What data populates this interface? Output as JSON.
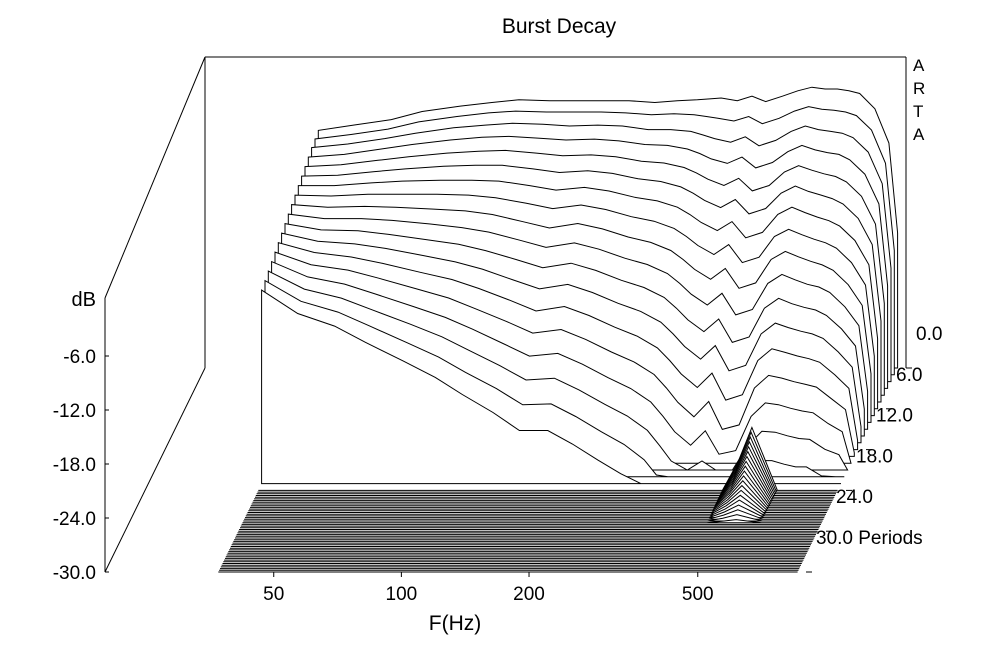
{
  "chart_data": {
    "type": "waterfall",
    "title": "Burst Decay",
    "watermark": "ARTA",
    "xlabel": "F(Hz)",
    "ylabel": "dB",
    "zlabel": "Periods",
    "x_scale": "log",
    "x_ticks": [
      "50",
      "100",
      "200",
      "500"
    ],
    "x_tick_values": [
      50,
      100,
      200,
      500
    ],
    "xlim": [
      20,
      900
    ],
    "y_ticks": [
      "-6.0",
      "-12.0",
      "-18.0",
      "-24.0",
      "-30.0"
    ],
    "y_tick_values": [
      -6,
      -12,
      -18,
      -24,
      -30
    ],
    "ylim": [
      -30,
      0
    ],
    "z_ticks": [
      "0.0",
      "6.0",
      "12.0",
      "18.0",
      "24.0",
      "30.0 Periods"
    ],
    "z_tick_values": [
      0,
      6,
      12,
      18,
      24,
      30
    ],
    "zlim": [
      0,
      30
    ],
    "frequencies": [
      37,
      45,
      55,
      65,
      80,
      95,
      110,
      130,
      150,
      175,
      200,
      230,
      260,
      290,
      310,
      330,
      360,
      390,
      420,
      460,
      500,
      540,
      580,
      620,
      660,
      700,
      760,
      820,
      860
    ],
    "response_at_0_periods_db": [
      -3.6,
      -3.0,
      -2.4,
      -1.5,
      -0.9,
      -0.5,
      -0.2,
      -0.3,
      -0.3,
      -0.3,
      -0.3,
      -0.5,
      -0.3,
      -0.2,
      -0.1,
      0.0,
      -0.3,
      0.2,
      -0.4,
      0.2,
      0.8,
      1.2,
      1.0,
      1.0,
      0.8,
      0.5,
      -1.2,
      -5.0,
      -15.0
    ],
    "decay_slices": {
      "periods": [
        0.0,
        1.0,
        2.0,
        3.0,
        4.0,
        5.0,
        6.0,
        7.0,
        8.0,
        9.0,
        10.0,
        11.0,
        12.0,
        13.0,
        14.0,
        15.0,
        16.0,
        17.0
      ],
      "min_db": -30,
      "series_db": [
        [
          -3.6,
          -3.0,
          -2.4,
          -1.5,
          -0.9,
          -0.5,
          -0.2,
          -0.3,
          -0.3,
          -0.3,
          -0.3,
          -0.5,
          -0.3,
          -0.2,
          -0.1,
          0.0,
          -0.3,
          0.2,
          -0.4,
          0.2,
          0.8,
          1.2,
          1.0,
          1.0,
          0.8,
          0.5,
          -1.2,
          -5.0,
          -15.0
        ],
        [
          -3.8,
          -3.3,
          -2.7,
          -1.9,
          -1.3,
          -0.9,
          -0.7,
          -0.8,
          -0.8,
          -0.8,
          -0.9,
          -1.1,
          -1.0,
          -1.1,
          -1.3,
          -1.5,
          -1.8,
          -1.3,
          -2.1,
          -1.5,
          -0.7,
          -0.2,
          -0.5,
          -0.6,
          -0.8,
          -1.2,
          -2.8,
          -6.5,
          -16.2
        ],
        [
          -4.0,
          -3.6,
          -3.0,
          -2.4,
          -1.8,
          -1.5,
          -1.3,
          -1.4,
          -1.6,
          -1.5,
          -1.6,
          -2.0,
          -2.0,
          -2.2,
          -2.6,
          -3.0,
          -3.4,
          -2.8,
          -3.8,
          -3.2,
          -2.2,
          -1.6,
          -2.0,
          -2.2,
          -2.4,
          -2.9,
          -4.5,
          -8.0,
          -17.4
        ],
        [
          -4.3,
          -4.0,
          -3.4,
          -2.9,
          -2.4,
          -2.1,
          -2.0,
          -2.2,
          -2.4,
          -2.3,
          -2.5,
          -2.9,
          -3.0,
          -3.4,
          -3.9,
          -4.5,
          -5.0,
          -4.3,
          -5.5,
          -4.9,
          -3.7,
          -3.0,
          -3.5,
          -3.8,
          -4.0,
          -4.6,
          -6.2,
          -9.5,
          -18.6
        ],
        [
          -4.6,
          -4.4,
          -3.9,
          -3.5,
          -3.1,
          -2.9,
          -2.8,
          -3.1,
          -3.4,
          -3.3,
          -3.5,
          -4.0,
          -4.2,
          -4.7,
          -5.3,
          -6.0,
          -6.7,
          -5.9,
          -7.3,
          -6.7,
          -5.2,
          -4.5,
          -5.0,
          -5.4,
          -5.7,
          -6.3,
          -7.9,
          -11.0,
          -19.8
        ],
        [
          -4.9,
          -4.8,
          -4.4,
          -4.1,
          -3.8,
          -3.7,
          -3.7,
          -4.1,
          -4.5,
          -4.3,
          -4.6,
          -5.2,
          -5.5,
          -6.1,
          -6.8,
          -7.6,
          -8.4,
          -7.5,
          -9.1,
          -8.5,
          -6.8,
          -6.0,
          -6.6,
          -7.0,
          -7.4,
          -8.0,
          -9.6,
          -12.5,
          -21.0
        ],
        [
          -5.2,
          -5.2,
          -4.9,
          -4.7,
          -4.6,
          -4.6,
          -4.7,
          -5.2,
          -5.7,
          -5.4,
          -5.8,
          -6.5,
          -6.9,
          -7.6,
          -8.4,
          -9.3,
          -10.2,
          -9.2,
          -11.0,
          -10.4,
          -8.4,
          -7.6,
          -8.2,
          -8.7,
          -9.1,
          -9.7,
          -11.3,
          -14.0,
          -22.2
        ],
        [
          -5.5,
          -5.6,
          -5.4,
          -5.4,
          -5.4,
          -5.5,
          -5.8,
          -6.4,
          -7.0,
          -6.6,
          -7.1,
          -7.9,
          -8.4,
          -9.2,
          -10.1,
          -11.1,
          -12.1,
          -11.0,
          -13.0,
          -12.4,
          -10.1,
          -9.3,
          -9.9,
          -10.4,
          -10.8,
          -11.4,
          -13.0,
          -15.5,
          -23.4
        ],
        [
          -5.8,
          -6.1,
          -6.0,
          -6.1,
          -6.3,
          -6.5,
          -6.9,
          -7.7,
          -8.4,
          -7.9,
          -8.5,
          -9.4,
          -10.0,
          -10.9,
          -11.9,
          -13.0,
          -14.1,
          -12.9,
          -15.1,
          -14.5,
          -11.9,
          -11.0,
          -11.6,
          -12.1,
          -12.5,
          -13.1,
          -14.7,
          -17.0,
          -24.6
        ],
        [
          -6.1,
          -6.6,
          -6.6,
          -6.8,
          -7.2,
          -7.6,
          -8.1,
          -9.0,
          -9.8,
          -9.3,
          -10.0,
          -11.0,
          -11.7,
          -12.7,
          -13.8,
          -15.0,
          -16.2,
          -14.9,
          -17.3,
          -16.7,
          -13.8,
          -12.8,
          -13.4,
          -13.9,
          -14.2,
          -14.8,
          -16.4,
          -18.5,
          -25.8
        ],
        [
          -6.4,
          -7.1,
          -7.2,
          -7.6,
          -8.2,
          -8.7,
          -9.4,
          -10.4,
          -11.3,
          -10.8,
          -11.6,
          -12.7,
          -13.5,
          -14.6,
          -15.8,
          -17.1,
          -18.4,
          -17.0,
          -19.6,
          -19.0,
          -15.8,
          -14.7,
          -15.3,
          -15.7,
          -16.0,
          -16.6,
          -18.1,
          -20.0,
          -27.0
        ],
        [
          -6.7,
          -7.6,
          -7.9,
          -8.4,
          -9.2,
          -9.9,
          -10.7,
          -11.9,
          -12.9,
          -12.4,
          -13.3,
          -14.5,
          -15.4,
          -16.6,
          -17.9,
          -19.3,
          -20.7,
          -19.2,
          -22.0,
          -21.4,
          -17.9,
          -16.7,
          -17.2,
          -17.6,
          -17.9,
          -18.4,
          -19.9,
          -21.6,
          -28.2
        ],
        [
          -7.0,
          -8.1,
          -8.6,
          -9.3,
          -10.3,
          -11.1,
          -12.1,
          -13.4,
          -14.6,
          -14.1,
          -15.1,
          -16.4,
          -17.4,
          -18.7,
          -20.1,
          -21.6,
          -23.1,
          -21.5,
          -24.5,
          -23.9,
          -20.1,
          -18.8,
          -19.2,
          -19.6,
          -19.9,
          -20.3,
          -21.7,
          -23.2,
          -29.0
        ],
        [
          -7.3,
          -8.7,
          -9.3,
          -10.2,
          -11.4,
          -12.4,
          -13.6,
          -15.0,
          -16.3,
          -15.9,
          -17.0,
          -18.4,
          -19.5,
          -20.9,
          -22.4,
          -24.0,
          -25.6,
          -23.9,
          -27.0,
          -26.5,
          -22.4,
          -21.0,
          -21.3,
          -21.7,
          -22.0,
          -22.3,
          -23.6,
          -24.8,
          -29.6
        ],
        [
          -7.6,
          -9.3,
          -10.1,
          -11.2,
          -12.6,
          -13.8,
          -15.1,
          -16.7,
          -18.1,
          -17.8,
          -19.0,
          -20.5,
          -21.7,
          -23.2,
          -24.8,
          -26.5,
          -28.0,
          -26.4,
          -29.0,
          -28.6,
          -24.8,
          -23.3,
          -23.5,
          -23.9,
          -24.2,
          -24.4,
          -25.6,
          -26.5,
          -30.0
        ],
        [
          -7.9,
          -9.9,
          -10.9,
          -12.2,
          -13.8,
          -15.2,
          -16.7,
          -18.4,
          -20.0,
          -19.8,
          -21.1,
          -22.7,
          -24.0,
          -25.6,
          -27.3,
          -29.0,
          -30.0,
          -29.0,
          -30.0,
          -30.0,
          -27.3,
          -25.7,
          -25.8,
          -26.2,
          -26.5,
          -26.6,
          -27.7,
          -28.3,
          -30.0
        ],
        [
          -8.2,
          -10.5,
          -11.7,
          -13.2,
          -15.1,
          -16.7,
          -18.4,
          -20.2,
          -22.0,
          -21.9,
          -23.3,
          -25.0,
          -26.4,
          -28.1,
          -29.8,
          -30.0,
          -30.0,
          -30.0,
          -30.0,
          -30.0,
          -29.8,
          -28.2,
          -28.2,
          -28.6,
          -28.9,
          -28.9,
          -29.9,
          -30.0,
          -30.0
        ],
        [
          -8.5,
          -11.1,
          -12.5,
          -14.3,
          -16.4,
          -18.2,
          -20.1,
          -22.1,
          -24.1,
          -24.1,
          -25.6,
          -27.4,
          -28.9,
          -30.0,
          -30.0,
          -30.0,
          -30.0,
          -30.0,
          -30.0,
          -30.0,
          -30.0,
          -30.0,
          -30.0,
          -30.0,
          -30.0,
          -30.0,
          -30.0,
          -30.0,
          -30.0
        ]
      ]
    },
    "floor_slices_periods_from": 18.0,
    "floor_slices_periods_to": 30.0,
    "floor_slice_step_periods": 0.25,
    "late_resonance_hz": 540,
    "late_resonance_peak_db": -23.0,
    "late_resonance_last_period": 23.0,
    "grid": false,
    "legend": "none"
  }
}
